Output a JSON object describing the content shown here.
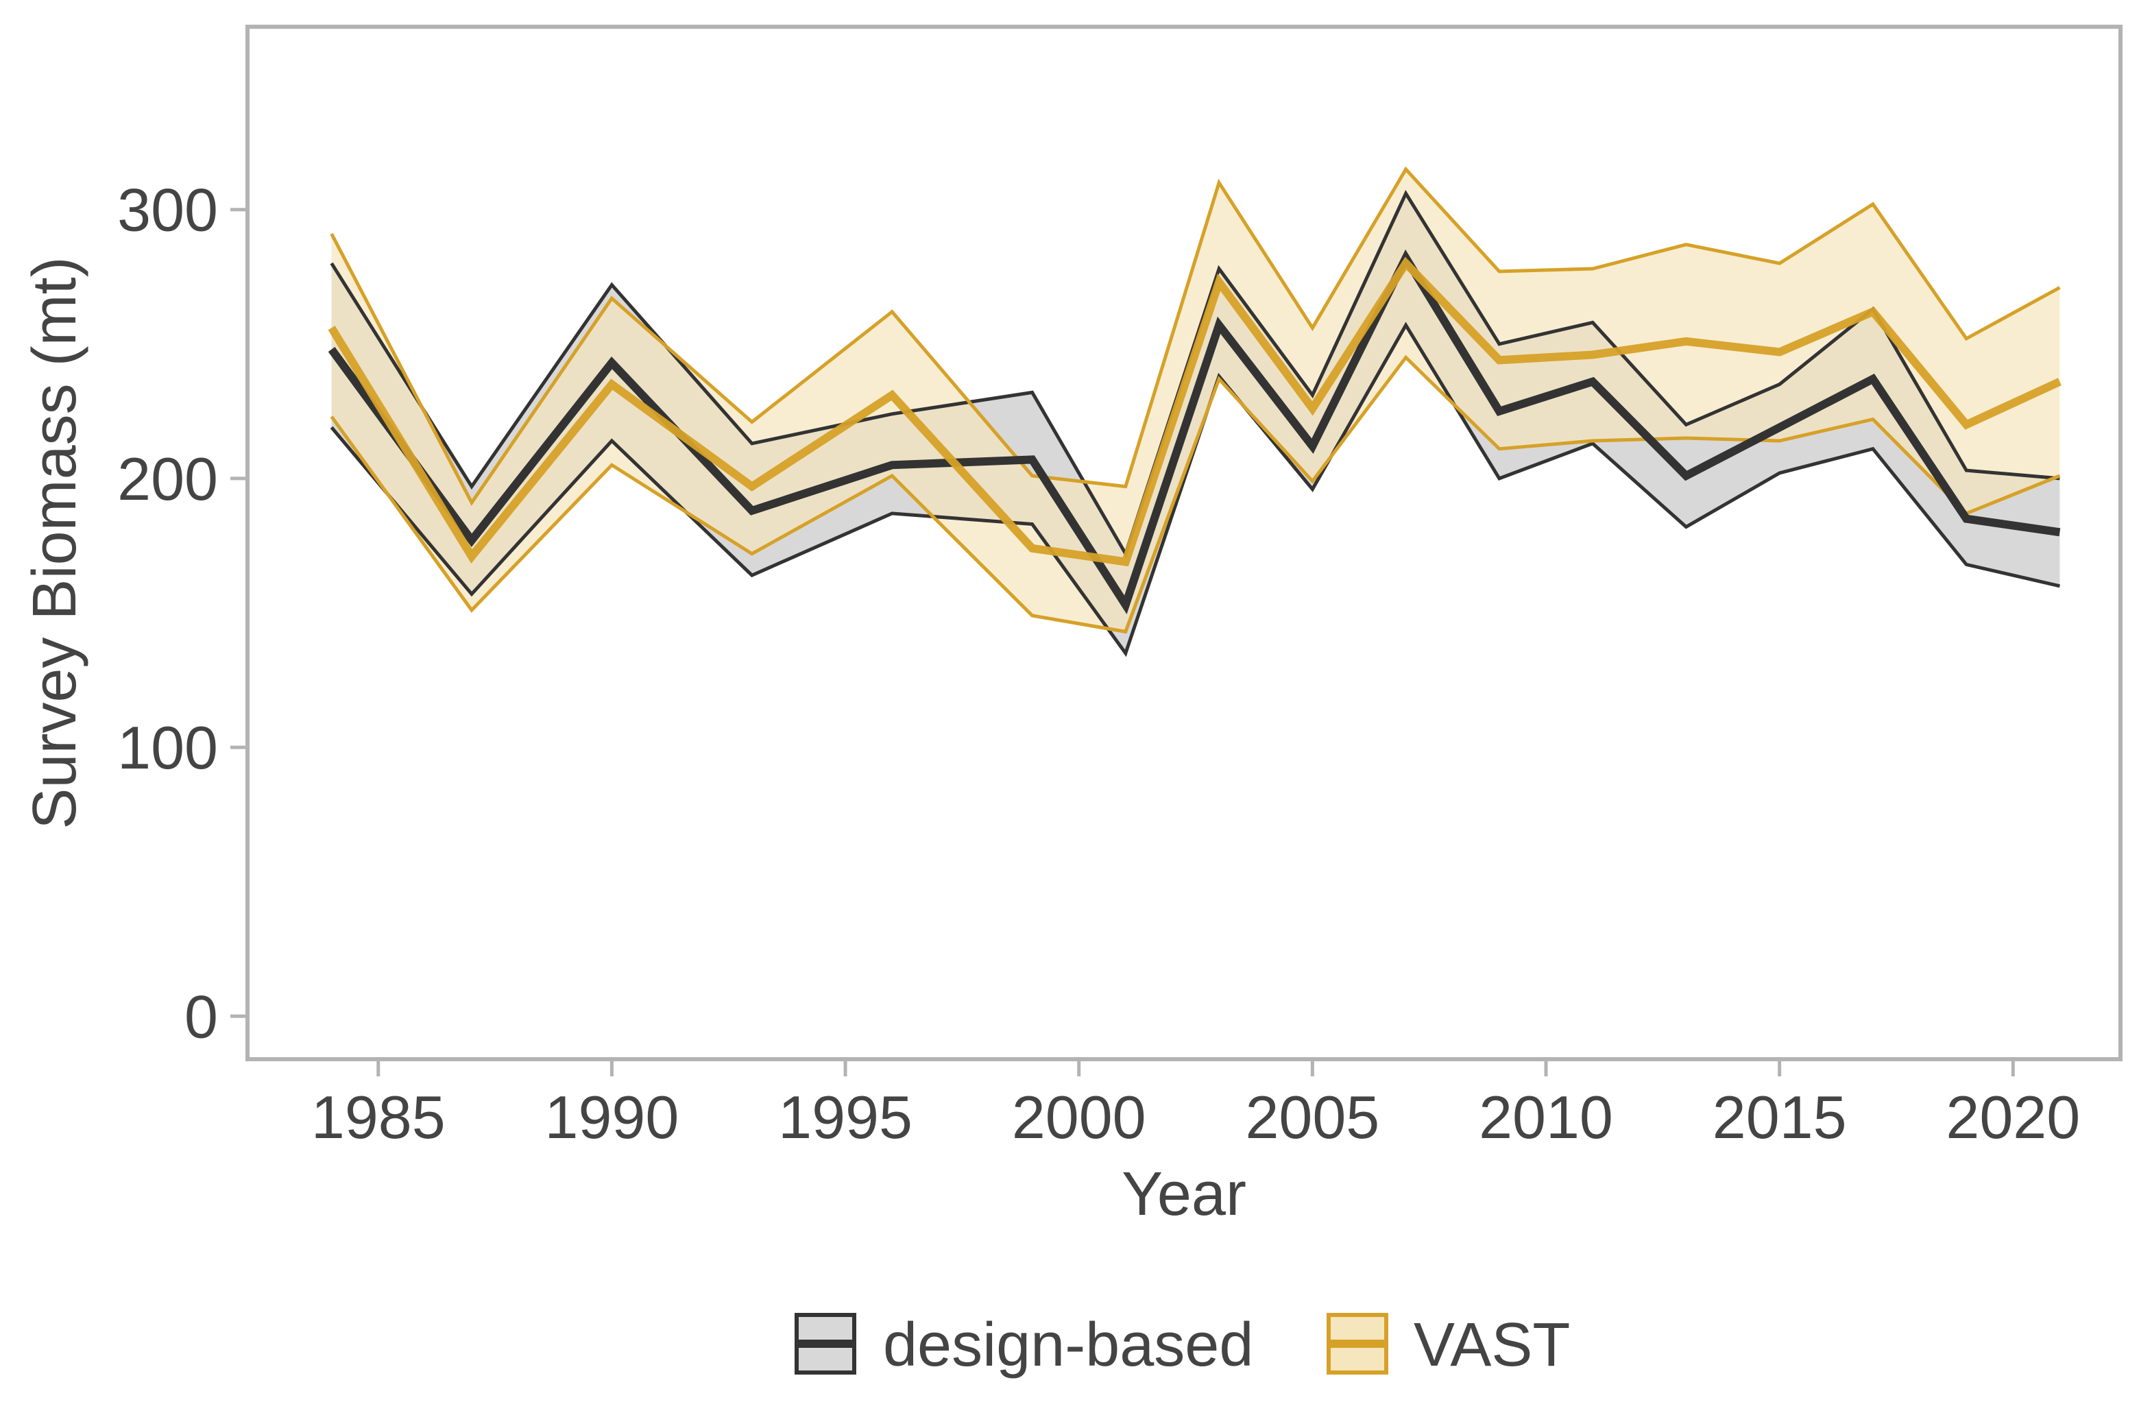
{
  "chart_data": {
    "type": "line",
    "title": "",
    "xlabel": "Year",
    "ylabel": "Survey Biomass (mt)",
    "xlim": [
      1982.2,
      2022.3
    ],
    "ylim": [
      -16,
      368
    ],
    "x_ticks": [
      1985,
      1990,
      1995,
      2000,
      2005,
      2010,
      2015,
      2020
    ],
    "y_ticks": [
      0,
      100,
      200,
      300
    ],
    "grid": false,
    "legend_position": "bottom",
    "series": [
      {
        "name": "design-based",
        "line_color": "#333333",
        "ribbon_color": "#d8d8d8",
        "x": [
          1984,
          1987,
          1990,
          1993,
          1996,
          1999,
          2001,
          2003,
          2005,
          2007,
          2009,
          2011,
          2013,
          2015,
          2017,
          2019,
          2021
        ],
        "y": [
          248,
          177,
          243,
          188,
          205,
          207,
          153,
          257,
          212,
          282,
          225,
          236,
          201,
          219,
          237,
          185,
          180
        ],
        "lower": [
          219,
          157,
          214,
          164,
          187,
          183,
          135,
          238,
          196,
          257,
          200,
          213,
          182,
          202,
          211,
          168,
          160
        ],
        "upper": [
          280,
          197,
          272,
          213,
          224,
          232,
          172,
          278,
          231,
          306,
          250,
          258,
          220,
          235,
          263,
          203,
          200
        ]
      },
      {
        "name": "VAST",
        "line_color": "#d6a128",
        "ribbon_color": "#f6e6bd",
        "x": [
          1984,
          1987,
          1990,
          1993,
          1996,
          1999,
          2001,
          2003,
          2005,
          2007,
          2009,
          2011,
          2013,
          2015,
          2017,
          2019,
          2021
        ],
        "y": [
          256,
          171,
          235,
          197,
          231,
          174,
          169,
          273,
          226,
          280,
          244,
          246,
          251,
          247,
          262,
          220,
          236
        ],
        "lower": [
          223,
          151,
          205,
          172,
          201,
          149,
          143,
          237,
          199,
          245,
          211,
          214,
          215,
          214,
          222,
          187,
          201
        ],
        "upper": [
          291,
          191,
          267,
          221,
          262,
          201,
          197,
          310,
          256,
          315,
          277,
          278,
          287,
          280,
          302,
          252,
          271
        ]
      }
    ]
  }
}
